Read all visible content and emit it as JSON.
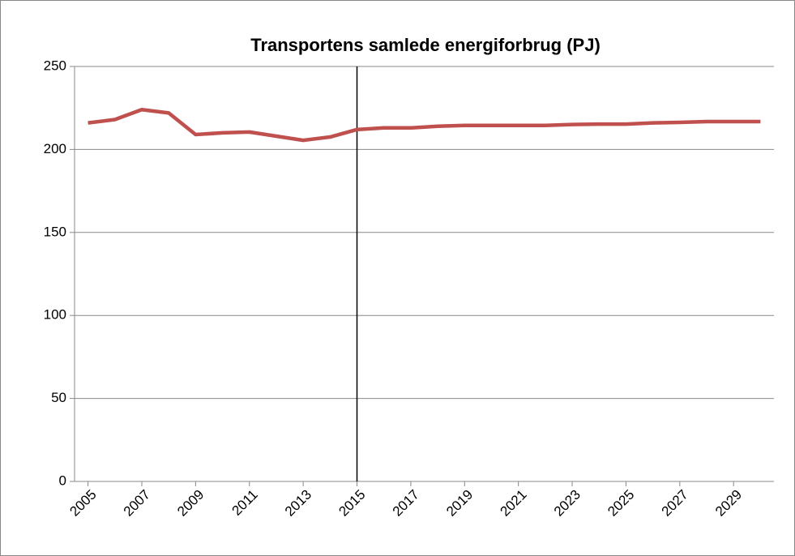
{
  "chart_data": {
    "type": "line",
    "title": "Transportens samlede energiforbrug (PJ)",
    "x": [
      2005,
      2006,
      2007,
      2008,
      2009,
      2010,
      2011,
      2012,
      2013,
      2014,
      2015,
      2016,
      2017,
      2018,
      2019,
      2020,
      2021,
      2022,
      2023,
      2024,
      2025,
      2026,
      2027,
      2028,
      2029,
      2030
    ],
    "series": [
      {
        "name": "Transportens samlede energiforbrug",
        "color": "#c0504d",
        "values": [
          216,
          218,
          224,
          222,
          209,
          210,
          210.5,
          208,
          205.5,
          207.5,
          212,
          213,
          213,
          214,
          214.5,
          214.5,
          214.5,
          214.5,
          215,
          215.3,
          215.3,
          216,
          216.3,
          216.8,
          216.8,
          216.8
        ]
      }
    ],
    "xlim": [
      2004.5,
      2030.5
    ],
    "xticks": [
      2005,
      2007,
      2009,
      2011,
      2013,
      2015,
      2017,
      2019,
      2021,
      2023,
      2025,
      2027,
      2029
    ],
    "ylim": [
      0,
      250
    ],
    "yticks": [
      0,
      50,
      100,
      150,
      200,
      250
    ],
    "grid": true,
    "vline": 2015
  }
}
